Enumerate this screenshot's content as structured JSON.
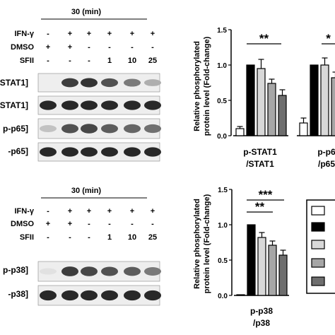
{
  "blots": [
    {
      "time_header": "30 (min)",
      "treatment_rows": [
        {
          "label": "IFN-γ",
          "values": [
            "-",
            "+",
            "+",
            "+",
            "+",
            "+"
          ]
        },
        {
          "label": "DMSO",
          "values": [
            "+",
            "+",
            "-",
            "-",
            "-",
            "-"
          ]
        },
        {
          "label": "SFII",
          "values": [
            "-",
            "-",
            "-",
            "1",
            "10",
            "25"
          ]
        }
      ],
      "protein_labels": [
        "-STAT1]",
        "STAT1]",
        "p-p65]",
        "-p65]"
      ]
    },
    {
      "time_header": "30 (min)",
      "treatment_rows": [
        {
          "label": "IFN-γ",
          "values": [
            "-",
            "+",
            "+",
            "+",
            "+",
            "+"
          ]
        },
        {
          "label": "DMSO",
          "values": [
            "+",
            "+",
            "-",
            "-",
            "-",
            "-"
          ]
        },
        {
          "label": "SFII",
          "values": [
            "-",
            "-",
            "-",
            "1",
            "10",
            "25"
          ]
        }
      ],
      "protein_labels": [
        "p-p38]",
        "-p38]"
      ]
    }
  ],
  "chart_data": [
    {
      "type": "bar",
      "ylabel": "Relative phosphorylated protein level (Fold-change)",
      "ylim": [
        0,
        1.5
      ],
      "yticks": [
        "0.0",
        "0.5",
        "1.0",
        "1.5"
      ],
      "groups": [
        {
          "xlabel": "p-STAT1 /STAT1",
          "values": [
            0.1,
            1.0,
            0.95,
            0.74,
            0.57
          ],
          "errors": [
            0.03,
            0.0,
            0.13,
            0.06,
            0.08
          ],
          "significance": [
            "**"
          ]
        },
        {
          "xlabel": "p-p6 /p65",
          "values": [
            0.18,
            1.0,
            1.0,
            0.82
          ],
          "errors": [
            0.07,
            0.0,
            0.1,
            0.08
          ],
          "significance": [
            "*"
          ]
        }
      ]
    },
    {
      "type": "bar",
      "ylabel": "Relative phosphorylated protein level (Fold-change)",
      "ylim": [
        0,
        1.5
      ],
      "yticks": [
        "0.0",
        "0.5",
        "1.0",
        "1.5"
      ],
      "groups": [
        {
          "xlabel": "p-p38 /p38",
          "values": [
            0.01,
            1.0,
            0.82,
            0.71,
            0.57
          ],
          "errors": [
            0.0,
            0.0,
            0.07,
            0.06,
            0.07
          ],
          "significance": [
            "***",
            "**"
          ]
        }
      ]
    }
  ],
  "legend": {
    "fills": [
      "#ffffff",
      "#000000",
      "#d8d8d8",
      "#a6a6a6",
      "#6e6e6e"
    ]
  }
}
